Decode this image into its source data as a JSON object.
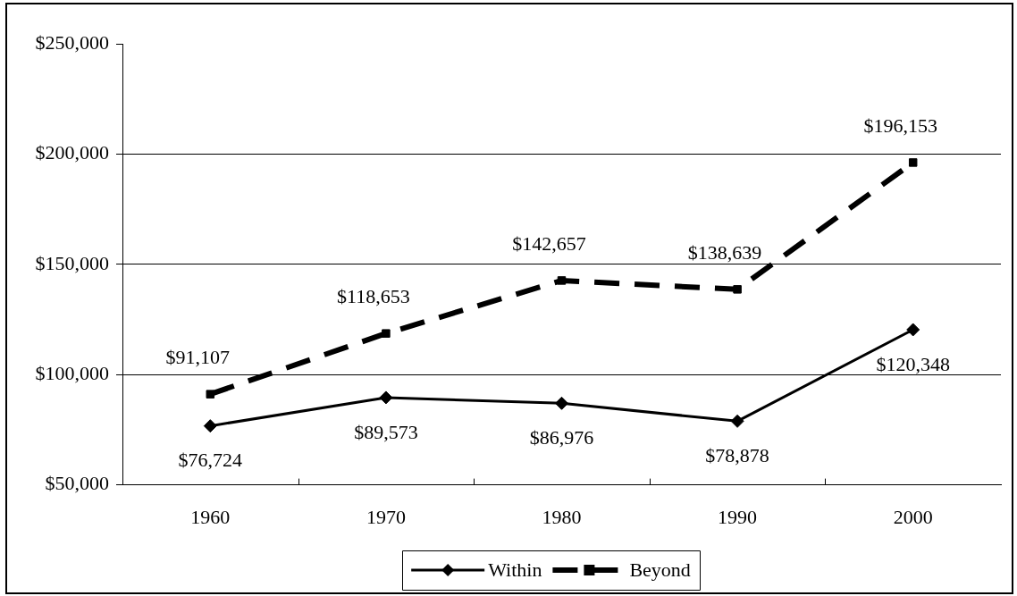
{
  "chart_data": {
    "type": "line",
    "categories": [
      "1960",
      "1970",
      "1980",
      "1990",
      "2000"
    ],
    "series": [
      {
        "name": "Within",
        "color": "#000000",
        "marker": "diamond",
        "line_style": "solid",
        "values": [
          76724,
          89573,
          86976,
          78878,
          120348
        ],
        "value_labels": [
          "$76,724",
          "$89,573",
          "$86,976",
          "$78,878",
          "$120,348"
        ]
      },
      {
        "name": "Beyond",
        "color": "#000000",
        "marker": "square",
        "line_style": "dashed",
        "values": [
          91107,
          118653,
          142657,
          138639,
          196153
        ],
        "value_labels": [
          "$91,107",
          "$118,653",
          "$142,657",
          "$138,639",
          "$196,153"
        ]
      }
    ],
    "ylim": [
      50000,
      250000
    ],
    "yticks": [
      {
        "value": 50000,
        "label": "$50,000"
      },
      {
        "value": 100000,
        "label": "$100,000"
      },
      {
        "value": 150000,
        "label": "$150,000"
      },
      {
        "value": 200000,
        "label": "$200,000"
      },
      {
        "value": 250000,
        "label": "$250,000"
      }
    ],
    "grid": "y",
    "legend": "bottom"
  }
}
